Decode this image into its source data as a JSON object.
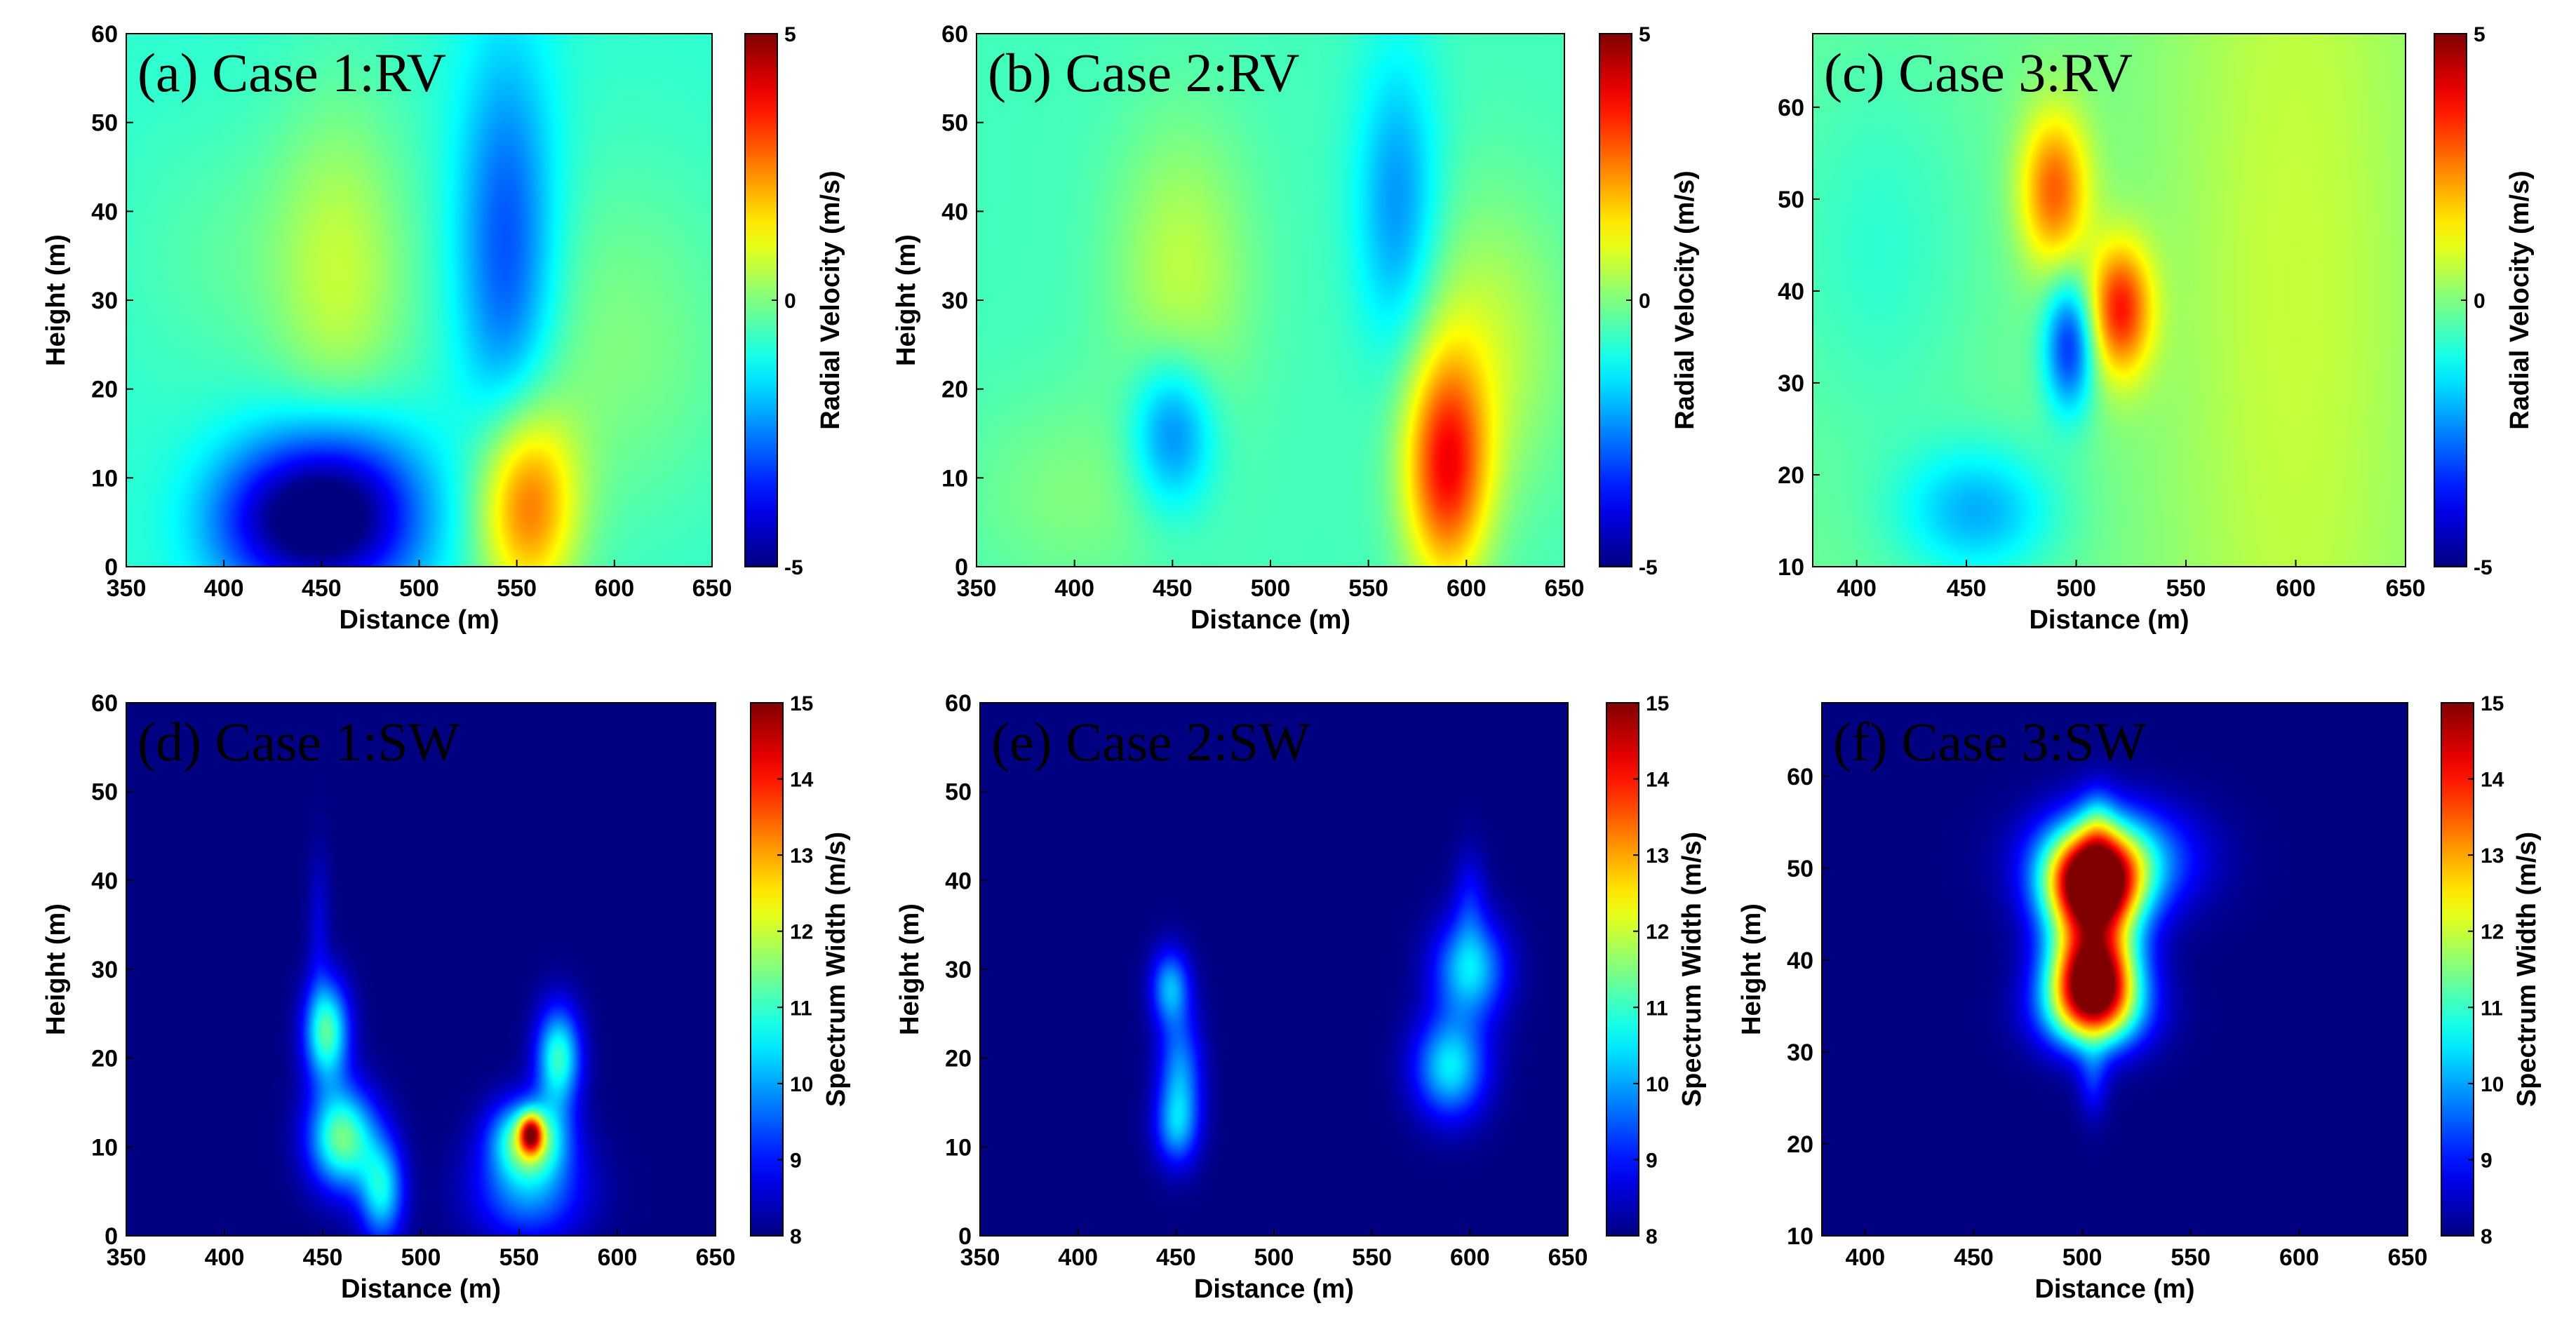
{
  "chart_data": [
    {
      "type": "heatmap",
      "panel": "a",
      "title": "(a)  Case 1:RV",
      "xlabel": "Distance (m)",
      "ylabel": "Height (m)",
      "colorbar_label": "Radial Velocity (m/s)",
      "xlim": [
        350,
        650
      ],
      "ylim": [
        0,
        60
      ],
      "clim": [
        -5,
        5
      ],
      "xticks": [
        "350",
        "400",
        "450",
        "500",
        "550",
        "600",
        "650"
      ],
      "yticks": [
        "0",
        "10",
        "20",
        "30",
        "40",
        "50",
        "60"
      ],
      "cticks": [
        "-5",
        "0",
        "5"
      ],
      "background": -0.8,
      "features": [
        {
          "x": 460,
          "y": 6,
          "sx": 30,
          "sy": 7,
          "v": -4.5
        },
        {
          "x": 420,
          "y": 5,
          "sx": 25,
          "sy": 6,
          "v": -2.0
        },
        {
          "x": 555,
          "y": 7,
          "sx": 18,
          "sy": 8,
          "v": 3.5
        },
        {
          "x": 545,
          "y": 35,
          "sx": 18,
          "sy": 16,
          "v": -2.4
        },
        {
          "x": 460,
          "y": 33,
          "sx": 25,
          "sy": 14,
          "v": 1.4
        },
        {
          "x": 600,
          "y": 25,
          "sx": 45,
          "sy": 14,
          "v": 0.8
        },
        {
          "x": 400,
          "y": 35,
          "sx": 35,
          "sy": 10,
          "v": 0.4
        }
      ]
    },
    {
      "type": "heatmap",
      "panel": "b",
      "title": "(b)  Case 2:RV",
      "xlabel": "Distance (m)",
      "ylabel": "Height (m)",
      "colorbar_label": "Radial Velocity (m/s)",
      "xlim": [
        350,
        650
      ],
      "ylim": [
        0,
        60
      ],
      "clim": [
        -5,
        5
      ],
      "xticks": [
        "350",
        "400",
        "450",
        "500",
        "550",
        "600",
        "650"
      ],
      "yticks": [
        "0",
        "10",
        "20",
        "30",
        "40",
        "50",
        "60"
      ],
      "cticks": [
        "-5",
        "0",
        "5"
      ],
      "background": -0.6,
      "features": [
        {
          "x": 590,
          "y": 11,
          "sx": 15,
          "sy": 9,
          "v": 4.0
        },
        {
          "x": 610,
          "y": 25,
          "sx": 30,
          "sy": 12,
          "v": 1.2
        },
        {
          "x": 450,
          "y": 15,
          "sx": 15,
          "sy": 6,
          "v": -2.2
        },
        {
          "x": 565,
          "y": 40,
          "sx": 15,
          "sy": 12,
          "v": -1.8
        },
        {
          "x": 455,
          "y": 33,
          "sx": 25,
          "sy": 12,
          "v": 1.2
        },
        {
          "x": 400,
          "y": 8,
          "sx": 40,
          "sy": 8,
          "v": 0.6
        }
      ]
    },
    {
      "type": "heatmap",
      "panel": "c",
      "title": "(c)  Case 3:RV",
      "xlabel": "Distance (m)",
      "ylabel": "",
      "colorbar_label": "Radial Velocity (m/s)",
      "xlim": [
        380,
        650
      ],
      "ylim": [
        10,
        68
      ],
      "clim": [
        -5,
        5
      ],
      "xticks": [
        "400",
        "450",
        "500",
        "550",
        "600",
        "650"
      ],
      "yticks": [
        "10",
        "20",
        "30",
        "40",
        "50",
        "60"
      ],
      "cticks": [
        "-5",
        "0",
        "5"
      ],
      "background": -0.2,
      "features": [
        {
          "x": 600,
          "y": 40,
          "sx": 45,
          "sy": 60,
          "v": 0.9
        },
        {
          "x": 490,
          "y": 51,
          "sx": 11,
          "sy": 6,
          "v": 3.0
        },
        {
          "x": 520,
          "y": 38,
          "sx": 10,
          "sy": 5,
          "v": 3.6
        },
        {
          "x": 497,
          "y": 34,
          "sx": 8,
          "sy": 5,
          "v": -3.2
        },
        {
          "x": 455,
          "y": 16,
          "sx": 25,
          "sy": 5,
          "v": -1.8
        },
        {
          "x": 410,
          "y": 45,
          "sx": 30,
          "sy": 15,
          "v": -0.6
        }
      ]
    },
    {
      "type": "heatmap",
      "panel": "d",
      "title": "(d)  Case 1:SW",
      "xlabel": "Distance (m)",
      "ylabel": "Height (m)",
      "colorbar_label": "Spectrum Width (m/s)",
      "xlim": [
        350,
        650
      ],
      "ylim": [
        0,
        60
      ],
      "clim": [
        8,
        15
      ],
      "xticks": [
        "350",
        "400",
        "450",
        "500",
        "550",
        "600",
        "650"
      ],
      "yticks": [
        "0",
        "10",
        "20",
        "30",
        "40",
        "50",
        "60"
      ],
      "cticks": [
        "8",
        "9",
        "10",
        "11",
        "12",
        "13",
        "14",
        "15"
      ],
      "background": 8.0,
      "features": [
        {
          "x": 452,
          "y": 23,
          "sx": 8,
          "sy": 4,
          "v": 3.2
        },
        {
          "x": 460,
          "y": 11,
          "sx": 12,
          "sy": 4,
          "v": 3.4
        },
        {
          "x": 480,
          "y": 5,
          "sx": 8,
          "sy": 4,
          "v": 2.5
        },
        {
          "x": 570,
          "y": 20,
          "sx": 8,
          "sy": 4,
          "v": 3.0
        },
        {
          "x": 555,
          "y": 11,
          "sx": 13,
          "sy": 3,
          "v": 3.5
        },
        {
          "x": 556,
          "y": 11.5,
          "sx": 4,
          "sy": 1.5,
          "v": 3.5
        },
        {
          "x": 555,
          "y": 5,
          "sx": 20,
          "sy": 4,
          "v": 1.8
        },
        {
          "x": 448,
          "y": 35,
          "sx": 4,
          "sy": 6,
          "v": 0.6
        }
      ]
    },
    {
      "type": "heatmap",
      "panel": "e",
      "title": "(e)  Case 2:SW",
      "xlabel": "Distance (m)",
      "ylabel": "Height (m)",
      "colorbar_label": "Spectrum Width (m/s)",
      "xlim": [
        350,
        650
      ],
      "ylim": [
        0,
        60
      ],
      "clim": [
        8,
        15
      ],
      "xticks": [
        "350",
        "400",
        "450",
        "500",
        "550",
        "600",
        "650"
      ],
      "yticks": [
        "0",
        "10",
        "20",
        "30",
        "40",
        "50",
        "60"
      ],
      "cticks": [
        "8",
        "9",
        "10",
        "11",
        "12",
        "13",
        "14",
        "15"
      ],
      "background": 8.0,
      "features": [
        {
          "x": 447,
          "y": 28,
          "sx": 7,
          "sy": 3,
          "v": 2.0
        },
        {
          "x": 452,
          "y": 18,
          "sx": 8,
          "sy": 5,
          "v": 1.9
        },
        {
          "x": 450,
          "y": 12,
          "sx": 8,
          "sy": 3,
          "v": 1.4
        },
        {
          "x": 600,
          "y": 30,
          "sx": 13,
          "sy": 4,
          "v": 2.4
        },
        {
          "x": 590,
          "y": 19,
          "sx": 13,
          "sy": 4,
          "v": 2.5
        },
        {
          "x": 600,
          "y": 38,
          "sx": 6,
          "sy": 4,
          "v": 0.8
        }
      ]
    },
    {
      "type": "heatmap",
      "panel": "f",
      "title": "(f)  Case 3:SW",
      "xlabel": "Distance (m)",
      "ylabel": "Height (m)",
      "colorbar_label": "Spectrum Width (m/s)",
      "xlim": [
        380,
        650
      ],
      "ylim": [
        10,
        68
      ],
      "clim": [
        8,
        15
      ],
      "xticks": [
        "400",
        "450",
        "500",
        "550",
        "600",
        "650"
      ],
      "yticks": [
        "10",
        "20",
        "30",
        "40",
        "50",
        "60"
      ],
      "cticks": [
        "8",
        "9",
        "10",
        "11",
        "12",
        "13",
        "14",
        "15"
      ],
      "background": 8.0,
      "features": [
        {
          "x": 505,
          "y": 48,
          "sx": 15,
          "sy": 4,
          "v": 7.5
        },
        {
          "x": 505,
          "y": 38,
          "sx": 14,
          "sy": 4,
          "v": 7.5
        },
        {
          "x": 515,
          "y": 51,
          "sx": 25,
          "sy": 4,
          "v": 2.5
        },
        {
          "x": 505,
          "y": 34,
          "sx": 18,
          "sy": 3,
          "v": 2.0
        },
        {
          "x": 507,
          "y": 55,
          "sx": 6,
          "sy": 3,
          "v": 1.0
        },
        {
          "x": 505,
          "y": 27,
          "sx": 5,
          "sy": 3,
          "v": 1.0
        }
      ]
    }
  ]
}
